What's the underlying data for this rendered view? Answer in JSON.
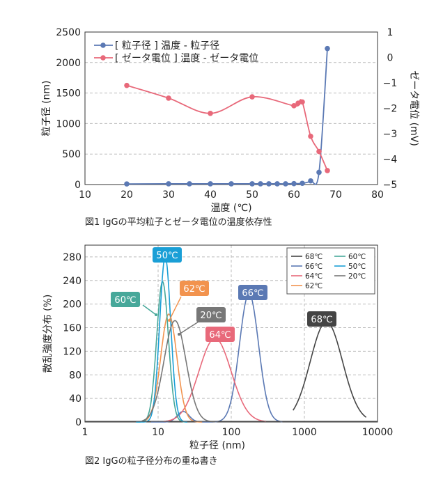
{
  "chart_data": [
    {
      "type": "line",
      "caption": "図1 IgGの平均粒子とゼータ電位の温度依存性",
      "xlabel": "温度 (℃)",
      "ylabel": "粒子径 (nm)",
      "y2label": "ゼータ電位 (mV)",
      "xlim": [
        10,
        80
      ],
      "ylim": [
        0,
        2500
      ],
      "y2lim": [
        -5,
        1
      ],
      "xticks": [
        "10",
        "20",
        "30",
        "40",
        "50",
        "60",
        "70",
        "80"
      ],
      "yticks": [
        "0",
        "500",
        "1000",
        "1500",
        "2000",
        "2500"
      ],
      "y2ticks": [
        "-5",
        "-4",
        "-3",
        "-2",
        "-1",
        "0",
        "1"
      ],
      "grid": "y dashed",
      "legend": "top-left",
      "series": [
        {
          "name": "[ 粒子径 ] 温度 - 粒子径",
          "axis": "left",
          "color": "#5b79b4",
          "x": [
            20,
            30,
            35,
            40,
            45,
            50,
            52,
            54,
            56,
            58,
            60,
            62,
            64,
            66,
            68
          ],
          "y": [
            10,
            12,
            12,
            12,
            12,
            12,
            12,
            12,
            12,
            12,
            15,
            20,
            60,
            200,
            2230
          ]
        },
        {
          "name": "[ ゼータ電位 ] 温度 - ゼータ電位",
          "axis": "right",
          "color": "#e8697a",
          "x": [
            20,
            30,
            40,
            50,
            60,
            61,
            62,
            64,
            66,
            68
          ],
          "y": [
            -1.1,
            -1.6,
            -2.2,
            -1.55,
            -1.9,
            -1.8,
            -1.75,
            -3.1,
            -3.7,
            -4.45
          ]
        }
      ]
    },
    {
      "type": "line",
      "caption": "図2 IgGの粒子径分布の重ね書き",
      "xlabel": "粒子径 (nm)",
      "ylabel": "散乱強度分布 (%)",
      "xscale": "log",
      "xlim": [
        1,
        10000
      ],
      "ylim": [
        0,
        300
      ],
      "xticks": [
        "1",
        "10",
        "100",
        "1000",
        "10000"
      ],
      "yticks": [
        "0",
        "40",
        "80",
        "120",
        "160",
        "200",
        "240",
        "280"
      ],
      "grid": "dashed",
      "legend": "top-right",
      "series": [
        {
          "name": "68℃",
          "color": "#444444",
          "peaks": [
            {
              "center": 2000,
              "height": 170,
              "width": 0.22
            }
          ],
          "range": [
            700,
            7000
          ]
        },
        {
          "name": "66℃",
          "color": "#5b79b4",
          "peaks": [
            {
              "center": 175,
              "height": 218,
              "width": 0.13
            },
            {
              "center": 22,
              "height": 18,
              "width": 0.08
            }
          ],
          "range": [
            8,
            500
          ]
        },
        {
          "name": "64℃",
          "color": "#e8697a",
          "peaks": [
            {
              "center": 60,
              "height": 142,
              "width": 0.22
            }
          ],
          "range": [
            12,
            300
          ]
        },
        {
          "name": "62℃",
          "color": "#f2934e",
          "peaks": [
            {
              "center": 14,
              "height": 183,
              "width": 0.11
            }
          ],
          "range": [
            6,
            40
          ]
        },
        {
          "name": "60℃",
          "color": "#47a89a",
          "peaks": [
            {
              "center": 11.5,
              "height": 238,
              "width": 0.08
            }
          ],
          "range": [
            5,
            25
          ]
        },
        {
          "name": "50℃",
          "color": "#1a9fd6",
          "peaks": [
            {
              "center": 12.5,
              "height": 280,
              "width": 0.075
            }
          ],
          "range": [
            5,
            25
          ]
        },
        {
          "name": "20℃",
          "color": "#777777",
          "peaks": [
            {
              "center": 17,
              "height": 172,
              "width": 0.15
            }
          ],
          "range": [
            6,
            60
          ]
        }
      ],
      "annotations": [
        {
          "text": "50℃",
          "color": "#1a9fd6"
        },
        {
          "text": "62℃",
          "color": "#f2934e"
        },
        {
          "text": "60℃",
          "color": "#47a89a"
        },
        {
          "text": "20℃",
          "color": "#777777"
        },
        {
          "text": "66℃",
          "color": "#5b79b4"
        },
        {
          "text": "64℃",
          "color": "#e8697a"
        },
        {
          "text": "68℃",
          "color": "#444444"
        }
      ]
    }
  ]
}
